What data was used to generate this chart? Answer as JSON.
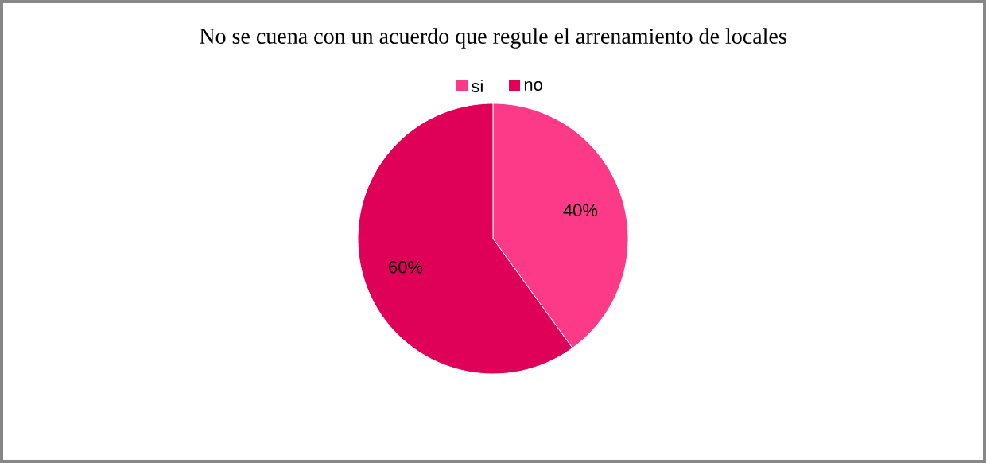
{
  "chart_data": {
    "type": "pie",
    "title": "No se cuena con un acuerdo que regule el arrenamiento de locales",
    "categories": [
      "si",
      "no"
    ],
    "values": [
      40,
      60
    ],
    "colors": [
      "#fc3a88",
      "#df0057"
    ],
    "value_labels": [
      "40%",
      "60%"
    ],
    "legend": "top"
  }
}
